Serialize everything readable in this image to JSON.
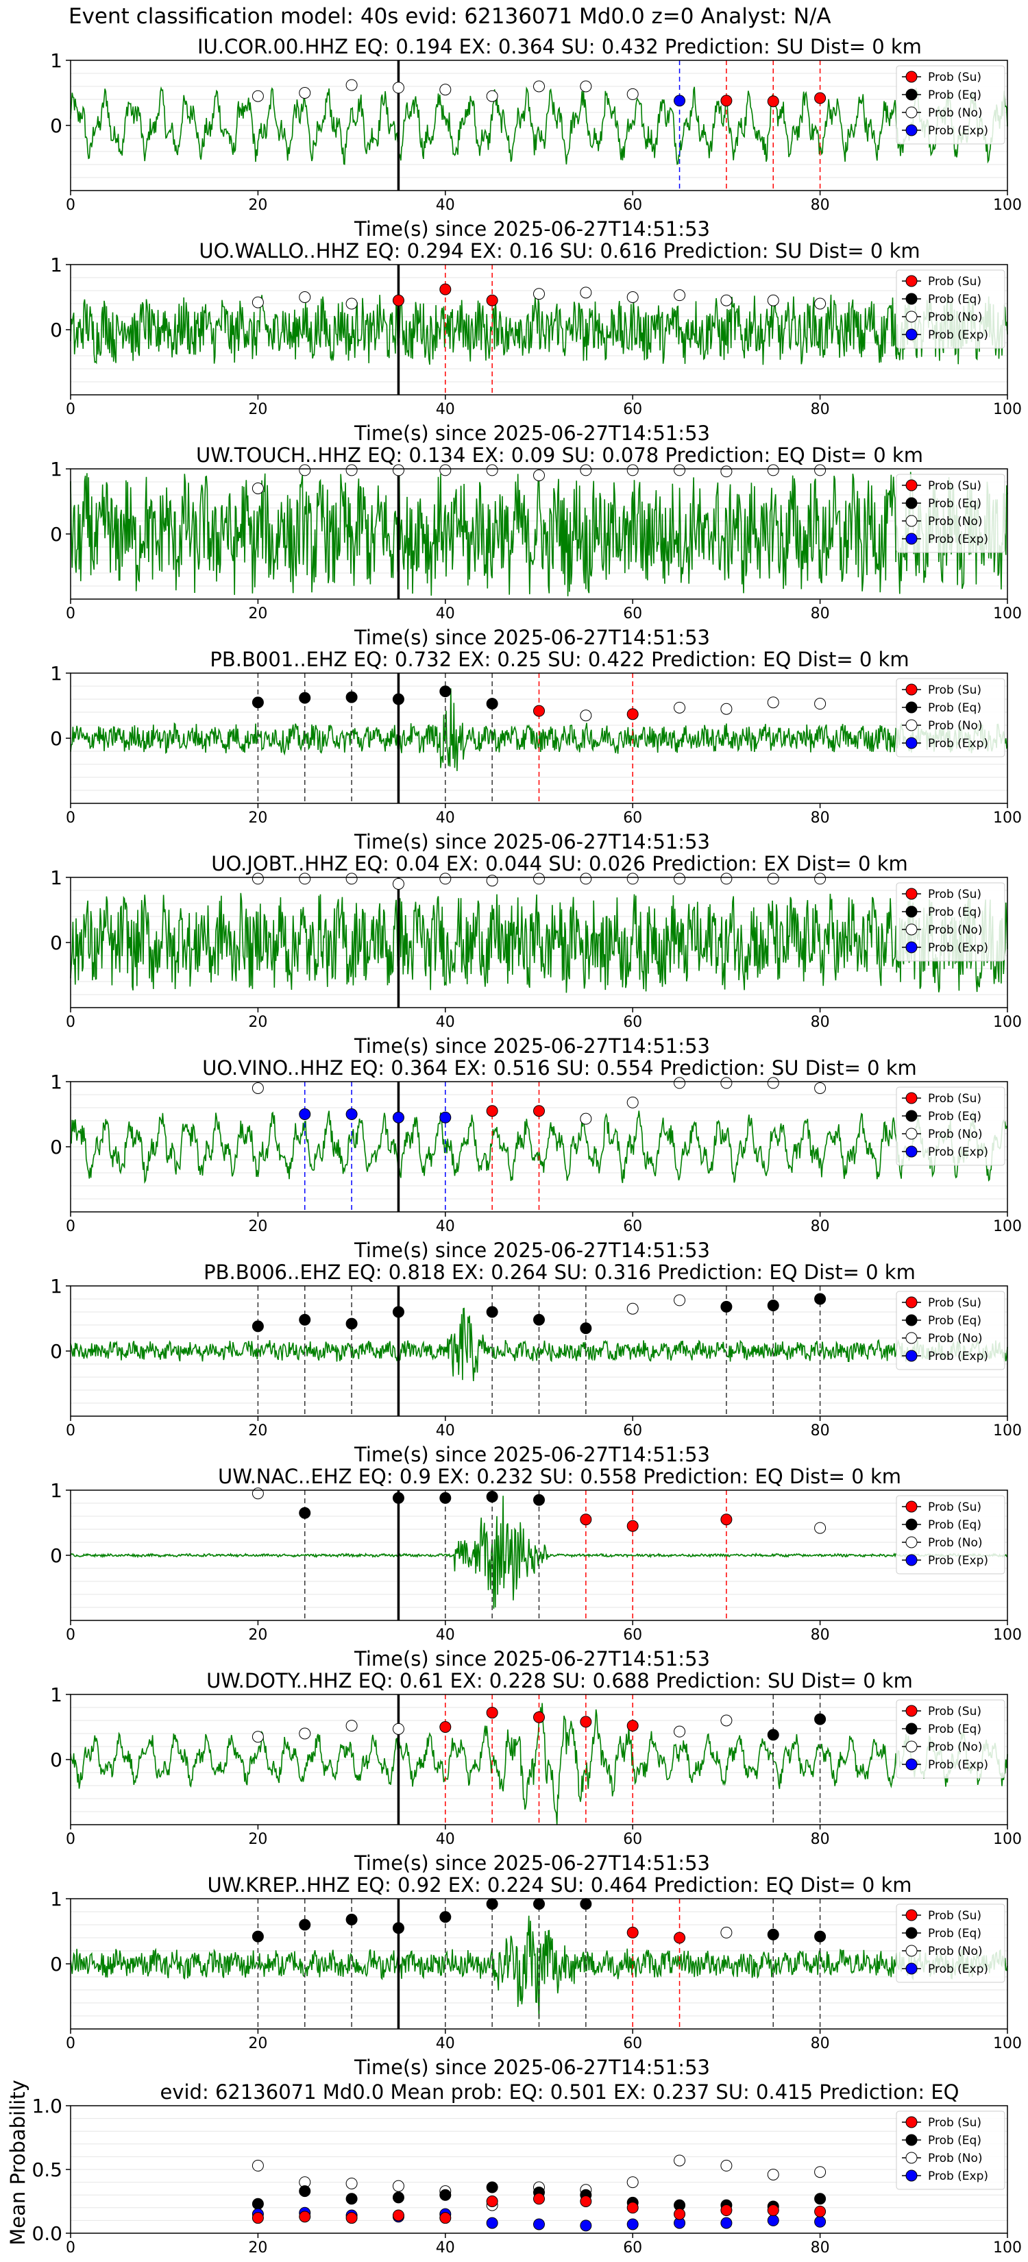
{
  "page_title": "Event classification model: 40s evid: 62136071 Md0.0 z=0 Analyst: N/A",
  "legend": [
    {
      "label": "Prob (Su)",
      "color": "#ff0000"
    },
    {
      "label": "Prob (Eq)",
      "color": "#000000"
    },
    {
      "label": "Prob (No)",
      "color": "#ffffff"
    },
    {
      "label": "Prob (Exp)",
      "color": "#0000ff"
    }
  ],
  "xlabel": "Time(s) since 2025-06-27T14:51:53",
  "mean_ylabel": "Mean Probability",
  "chart_data": [
    {
      "type": "line",
      "title": "IU.COR.00.HHZ   EQ: 0.194  EX: 0.364  SU: 0.432   Prediction: SU    Dist= 0 km",
      "xlim": [
        0,
        100
      ],
      "ylim": [
        -1,
        1
      ],
      "yticks": [
        0,
        1
      ],
      "xticks": [
        0,
        20,
        40,
        60,
        80,
        100
      ],
      "pick_time": 35,
      "wave": {
        "amp": 0.55,
        "style": "lowfreq",
        "burst": null
      },
      "points": [
        {
          "t": 20,
          "p": 0.45,
          "cls": "No"
        },
        {
          "t": 25,
          "p": 0.5,
          "cls": "No"
        },
        {
          "t": 30,
          "p": 0.62,
          "cls": "No"
        },
        {
          "t": 35,
          "p": 0.58,
          "cls": "No"
        },
        {
          "t": 40,
          "p": 0.55,
          "cls": "No"
        },
        {
          "t": 45,
          "p": 0.45,
          "cls": "No"
        },
        {
          "t": 50,
          "p": 0.6,
          "cls": "No"
        },
        {
          "t": 55,
          "p": 0.6,
          "cls": "No"
        },
        {
          "t": 60,
          "p": 0.48,
          "cls": "No"
        },
        {
          "t": 65,
          "p": 0.38,
          "cls": "Exp"
        },
        {
          "t": 70,
          "p": 0.38,
          "cls": "Su"
        },
        {
          "t": 75,
          "p": 0.37,
          "cls": "Su"
        },
        {
          "t": 80,
          "p": 0.42,
          "cls": "Su"
        }
      ]
    },
    {
      "type": "line",
      "title": "UO.WALLO..HHZ   EQ: 0.294  EX: 0.16  SU: 0.616   Prediction: SU    Dist= 0 km",
      "xlim": [
        0,
        100
      ],
      "ylim": [
        -1,
        1
      ],
      "yticks": [
        0,
        1
      ],
      "xticks": [
        0,
        20,
        40,
        60,
        80,
        100
      ],
      "pick_time": 35,
      "wave": {
        "amp": 0.45,
        "style": "noise",
        "burst": null
      },
      "points": [
        {
          "t": 20,
          "p": 0.42,
          "cls": "No"
        },
        {
          "t": 25,
          "p": 0.5,
          "cls": "No"
        },
        {
          "t": 30,
          "p": 0.4,
          "cls": "No"
        },
        {
          "t": 35,
          "p": 0.45,
          "cls": "Su"
        },
        {
          "t": 40,
          "p": 0.62,
          "cls": "Su"
        },
        {
          "t": 45,
          "p": 0.45,
          "cls": "Su"
        },
        {
          "t": 50,
          "p": 0.55,
          "cls": "No"
        },
        {
          "t": 55,
          "p": 0.57,
          "cls": "No"
        },
        {
          "t": 60,
          "p": 0.5,
          "cls": "No"
        },
        {
          "t": 65,
          "p": 0.53,
          "cls": "No"
        },
        {
          "t": 70,
          "p": 0.45,
          "cls": "No"
        },
        {
          "t": 75,
          "p": 0.45,
          "cls": "No"
        },
        {
          "t": 80,
          "p": 0.4,
          "cls": "No"
        }
      ]
    },
    {
      "type": "line",
      "title": "UW.TOUCH..HHZ   EQ: 0.134  EX: 0.09  SU: 0.078   Prediction: EQ    Dist= 0 km",
      "xlim": [
        0,
        100
      ],
      "ylim": [
        -1,
        1
      ],
      "yticks": [
        0,
        1
      ],
      "xticks": [
        0,
        20,
        40,
        60,
        80,
        100
      ],
      "pick_time": 35,
      "wave": {
        "amp": 0.8,
        "style": "noise",
        "burst": null
      },
      "points": [
        {
          "t": 20,
          "p": 0.7,
          "cls": "No"
        },
        {
          "t": 25,
          "p": 0.98,
          "cls": "No"
        },
        {
          "t": 30,
          "p": 0.98,
          "cls": "No"
        },
        {
          "t": 35,
          "p": 0.98,
          "cls": "No"
        },
        {
          "t": 40,
          "p": 0.98,
          "cls": "No"
        },
        {
          "t": 45,
          "p": 0.98,
          "cls": "No"
        },
        {
          "t": 50,
          "p": 0.9,
          "cls": "No"
        },
        {
          "t": 55,
          "p": 0.98,
          "cls": "No"
        },
        {
          "t": 60,
          "p": 0.98,
          "cls": "No"
        },
        {
          "t": 65,
          "p": 0.98,
          "cls": "No"
        },
        {
          "t": 70,
          "p": 0.96,
          "cls": "No"
        },
        {
          "t": 75,
          "p": 0.98,
          "cls": "No"
        },
        {
          "t": 80,
          "p": 0.98,
          "cls": "No"
        }
      ]
    },
    {
      "type": "line",
      "title": "PB.B001..EHZ   EQ: 0.732  EX: 0.25  SU: 0.422   Prediction: EQ    Dist= 0 km",
      "xlim": [
        0,
        100
      ],
      "ylim": [
        -1,
        1
      ],
      "yticks": [
        0,
        1
      ],
      "xticks": [
        0,
        20,
        40,
        60,
        80,
        100
      ],
      "pick_time": 35,
      "wave": {
        "amp": 0.2,
        "style": "noise",
        "burst": [
          39,
          42
        ]
      },
      "points": [
        {
          "t": 20,
          "p": 0.55,
          "cls": "Eq"
        },
        {
          "t": 25,
          "p": 0.62,
          "cls": "Eq"
        },
        {
          "t": 30,
          "p": 0.63,
          "cls": "Eq"
        },
        {
          "t": 35,
          "p": 0.6,
          "cls": "Eq"
        },
        {
          "t": 40,
          "p": 0.72,
          "cls": "Eq"
        },
        {
          "t": 45,
          "p": 0.53,
          "cls": "Eq"
        },
        {
          "t": 50,
          "p": 0.42,
          "cls": "Su"
        },
        {
          "t": 55,
          "p": 0.35,
          "cls": "No"
        },
        {
          "t": 60,
          "p": 0.37,
          "cls": "Su"
        },
        {
          "t": 65,
          "p": 0.47,
          "cls": "No"
        },
        {
          "t": 70,
          "p": 0.45,
          "cls": "No"
        },
        {
          "t": 75,
          "p": 0.55,
          "cls": "No"
        },
        {
          "t": 80,
          "p": 0.53,
          "cls": "No"
        }
      ]
    },
    {
      "type": "line",
      "title": "UO.JOBT..HHZ   EQ: 0.04  EX: 0.044  SU: 0.026   Prediction: EX    Dist= 0 km",
      "xlim": [
        0,
        100
      ],
      "ylim": [
        -1,
        1
      ],
      "yticks": [
        0,
        1
      ],
      "xticks": [
        0,
        20,
        40,
        60,
        80,
        100
      ],
      "pick_time": 35,
      "wave": {
        "amp": 0.65,
        "style": "noise",
        "burst": null
      },
      "points": [
        {
          "t": 20,
          "p": 0.98,
          "cls": "No"
        },
        {
          "t": 25,
          "p": 0.98,
          "cls": "No"
        },
        {
          "t": 30,
          "p": 0.98,
          "cls": "No"
        },
        {
          "t": 35,
          "p": 0.9,
          "cls": "No"
        },
        {
          "t": 40,
          "p": 0.98,
          "cls": "No"
        },
        {
          "t": 45,
          "p": 0.95,
          "cls": "No"
        },
        {
          "t": 50,
          "p": 0.98,
          "cls": "No"
        },
        {
          "t": 55,
          "p": 0.98,
          "cls": "No"
        },
        {
          "t": 60,
          "p": 0.98,
          "cls": "No"
        },
        {
          "t": 65,
          "p": 0.98,
          "cls": "No"
        },
        {
          "t": 70,
          "p": 0.98,
          "cls": "No"
        },
        {
          "t": 75,
          "p": 0.98,
          "cls": "No"
        },
        {
          "t": 80,
          "p": 0.98,
          "cls": "No"
        }
      ]
    },
    {
      "type": "line",
      "title": "UO.VINO..HHZ   EQ: 0.364  EX: 0.516  SU: 0.554   Prediction: SU    Dist= 0 km",
      "xlim": [
        0,
        100
      ],
      "ylim": [
        -1,
        1
      ],
      "yticks": [
        0,
        1
      ],
      "xticks": [
        0,
        20,
        40,
        60,
        80,
        100
      ],
      "pick_time": 35,
      "wave": {
        "amp": 0.5,
        "style": "lowfreq",
        "burst": null
      },
      "points": [
        {
          "t": 20,
          "p": 0.9,
          "cls": "No"
        },
        {
          "t": 25,
          "p": 0.5,
          "cls": "Exp"
        },
        {
          "t": 30,
          "p": 0.5,
          "cls": "Exp"
        },
        {
          "t": 35,
          "p": 0.45,
          "cls": "Exp"
        },
        {
          "t": 40,
          "p": 0.45,
          "cls": "Exp"
        },
        {
          "t": 45,
          "p": 0.55,
          "cls": "Su"
        },
        {
          "t": 50,
          "p": 0.55,
          "cls": "Su"
        },
        {
          "t": 55,
          "p": 0.43,
          "cls": "No"
        },
        {
          "t": 60,
          "p": 0.68,
          "cls": "No"
        },
        {
          "t": 65,
          "p": 0.98,
          "cls": "No"
        },
        {
          "t": 70,
          "p": 0.98,
          "cls": "No"
        },
        {
          "t": 75,
          "p": 0.98,
          "cls": "No"
        },
        {
          "t": 80,
          "p": 0.9,
          "cls": "No"
        }
      ]
    },
    {
      "type": "line",
      "title": "PB.B006..EHZ   EQ: 0.818  EX: 0.264  SU: 0.316   Prediction: EQ    Dist= 0 km",
      "xlim": [
        0,
        100
      ],
      "ylim": [
        -1,
        1
      ],
      "yticks": [
        0,
        1
      ],
      "xticks": [
        0,
        20,
        40,
        60,
        80,
        100
      ],
      "pick_time": 35,
      "wave": {
        "amp": 0.14,
        "style": "noise",
        "burst": [
          40,
          44
        ]
      },
      "points": [
        {
          "t": 20,
          "p": 0.38,
          "cls": "Eq"
        },
        {
          "t": 25,
          "p": 0.48,
          "cls": "Eq"
        },
        {
          "t": 30,
          "p": 0.42,
          "cls": "Eq"
        },
        {
          "t": 35,
          "p": 0.6,
          "cls": "Eq"
        },
        {
          "t": 45,
          "p": 0.6,
          "cls": "Eq"
        },
        {
          "t": 50,
          "p": 0.48,
          "cls": "Eq"
        },
        {
          "t": 55,
          "p": 0.35,
          "cls": "Eq"
        },
        {
          "t": 60,
          "p": 0.65,
          "cls": "No"
        },
        {
          "t": 65,
          "p": 0.78,
          "cls": "No"
        },
        {
          "t": 70,
          "p": 0.68,
          "cls": "Eq"
        },
        {
          "t": 75,
          "p": 0.7,
          "cls": "Eq"
        },
        {
          "t": 80,
          "p": 0.8,
          "cls": "Eq"
        }
      ]
    },
    {
      "type": "line",
      "title": "UW.NAC..EHZ   EQ: 0.9  EX: 0.232  SU: 0.558   Prediction: EQ    Dist= 0 km",
      "xlim": [
        0,
        100
      ],
      "ylim": [
        -1,
        1
      ],
      "yticks": [
        0,
        1
      ],
      "xticks": [
        0,
        20,
        40,
        60,
        80,
        100
      ],
      "pick_time": 35,
      "wave": {
        "amp": 0.02,
        "style": "quiet",
        "burst": [
          41,
          51
        ]
      },
      "points": [
        {
          "t": 20,
          "p": 0.95,
          "cls": "No"
        },
        {
          "t": 25,
          "p": 0.65,
          "cls": "Eq"
        },
        {
          "t": 35,
          "p": 0.88,
          "cls": "Eq"
        },
        {
          "t": 40,
          "p": 0.88,
          "cls": "Eq"
        },
        {
          "t": 45,
          "p": 0.9,
          "cls": "Eq"
        },
        {
          "t": 50,
          "p": 0.85,
          "cls": "Eq"
        },
        {
          "t": 55,
          "p": 0.55,
          "cls": "Su"
        },
        {
          "t": 60,
          "p": 0.45,
          "cls": "Su"
        },
        {
          "t": 70,
          "p": 0.55,
          "cls": "Su"
        },
        {
          "t": 80,
          "p": 0.42,
          "cls": "No"
        }
      ]
    },
    {
      "type": "line",
      "title": "UW.DOTY..HHZ   EQ: 0.61  EX: 0.228  SU: 0.688   Prediction: SU    Dist= 0 km",
      "xlim": [
        0,
        100
      ],
      "ylim": [
        -1,
        1
      ],
      "yticks": [
        0,
        1
      ],
      "xticks": [
        0,
        20,
        40,
        60,
        80,
        100
      ],
      "pick_time": 35,
      "wave": {
        "amp": 0.4,
        "style": "lowfreq",
        "burst": [
          44,
          60
        ]
      },
      "points": [
        {
          "t": 20,
          "p": 0.35,
          "cls": "No"
        },
        {
          "t": 25,
          "p": 0.4,
          "cls": "No"
        },
        {
          "t": 30,
          "p": 0.52,
          "cls": "No"
        },
        {
          "t": 35,
          "p": 0.47,
          "cls": "No"
        },
        {
          "t": 40,
          "p": 0.5,
          "cls": "Su"
        },
        {
          "t": 45,
          "p": 0.72,
          "cls": "Su"
        },
        {
          "t": 50,
          "p": 0.65,
          "cls": "Su"
        },
        {
          "t": 55,
          "p": 0.58,
          "cls": "Su"
        },
        {
          "t": 60,
          "p": 0.52,
          "cls": "Su"
        },
        {
          "t": 65,
          "p": 0.43,
          "cls": "No"
        },
        {
          "t": 70,
          "p": 0.6,
          "cls": "No"
        },
        {
          "t": 75,
          "p": 0.38,
          "cls": "Eq"
        },
        {
          "t": 80,
          "p": 0.62,
          "cls": "Eq"
        }
      ]
    },
    {
      "type": "line",
      "title": "UW.KREP..HHZ   EQ: 0.92  EX: 0.224  SU: 0.464   Prediction: EQ    Dist= 0 km",
      "xlim": [
        0,
        100
      ],
      "ylim": [
        -1,
        1
      ],
      "yticks": [
        0,
        1
      ],
      "xticks": [
        0,
        20,
        40,
        60,
        80,
        100
      ],
      "pick_time": 35,
      "wave": {
        "amp": 0.2,
        "style": "noise",
        "burst": [
          45,
          54
        ]
      },
      "points": [
        {
          "t": 20,
          "p": 0.42,
          "cls": "Eq"
        },
        {
          "t": 25,
          "p": 0.6,
          "cls": "Eq"
        },
        {
          "t": 30,
          "p": 0.68,
          "cls": "Eq"
        },
        {
          "t": 35,
          "p": 0.55,
          "cls": "Eq"
        },
        {
          "t": 40,
          "p": 0.72,
          "cls": "Eq"
        },
        {
          "t": 45,
          "p": 0.92,
          "cls": "Eq"
        },
        {
          "t": 50,
          "p": 0.92,
          "cls": "Eq"
        },
        {
          "t": 55,
          "p": 0.92,
          "cls": "Eq"
        },
        {
          "t": 60,
          "p": 0.48,
          "cls": "Su"
        },
        {
          "t": 65,
          "p": 0.4,
          "cls": "Su"
        },
        {
          "t": 70,
          "p": 0.48,
          "cls": "No"
        },
        {
          "t": 75,
          "p": 0.45,
          "cls": "Eq"
        },
        {
          "t": 80,
          "p": 0.42,
          "cls": "Eq"
        }
      ]
    },
    {
      "type": "scatter",
      "title": "evid: 62136071  Md0.0   Mean prob:   EQ: 0.501  EX: 0.237  SU: 0.415   Prediction: EQ",
      "xlim": [
        0,
        100
      ],
      "ylim": [
        0,
        1
      ],
      "yticks": [
        0.0,
        0.5,
        1.0
      ],
      "xticks": [
        0,
        20,
        40,
        60,
        80,
        100
      ],
      "ylabel": "Mean Probability",
      "x": [
        20,
        25,
        30,
        35,
        40,
        45,
        50,
        55,
        60,
        65,
        70,
        75,
        80
      ],
      "series": [
        {
          "name": "Prob (No)",
          "cls": "No",
          "values": [
            0.53,
            0.4,
            0.39,
            0.37,
            0.33,
            0.22,
            0.36,
            0.34,
            0.4,
            0.57,
            0.53,
            0.46,
            0.48
          ]
        },
        {
          "name": "Prob (Eq)",
          "cls": "Eq",
          "values": [
            0.23,
            0.33,
            0.27,
            0.28,
            0.3,
            0.36,
            0.32,
            0.3,
            0.24,
            0.22,
            0.22,
            0.21,
            0.27
          ]
        },
        {
          "name": "Prob (Exp)",
          "cls": "Exp",
          "values": [
            0.15,
            0.16,
            0.14,
            0.13,
            0.15,
            0.08,
            0.07,
            0.06,
            0.07,
            0.08,
            0.08,
            0.1,
            0.09
          ]
        },
        {
          "name": "Prob (Su)",
          "cls": "Su",
          "values": [
            0.12,
            0.13,
            0.12,
            0.14,
            0.12,
            0.25,
            0.27,
            0.25,
            0.2,
            0.15,
            0.18,
            0.18,
            0.17
          ]
        }
      ]
    }
  ]
}
